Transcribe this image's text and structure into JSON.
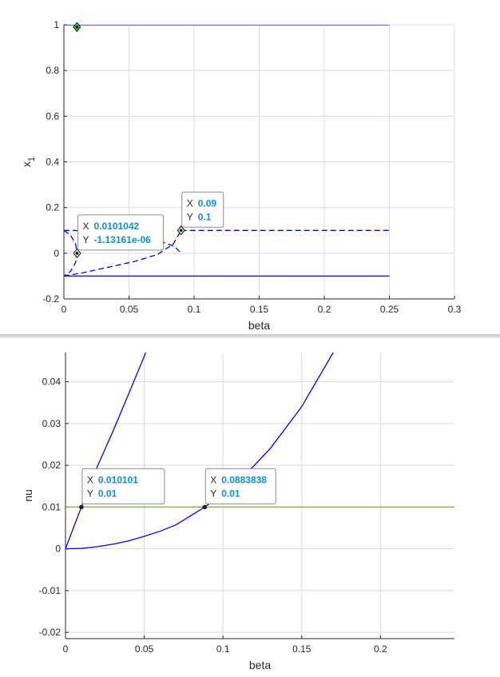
{
  "chart_data": [
    {
      "type": "line",
      "xlabel": "beta",
      "ylabel": "x",
      "ylabel_sub": "1",
      "xlim": [
        0,
        0.3
      ],
      "ylim": [
        -0.2,
        1
      ],
      "xticks": [
        0,
        0.05,
        0.1,
        0.15,
        0.2,
        0.25,
        0.3
      ],
      "xtick_labels": [
        "0",
        "0.05",
        "0.1",
        "0.15",
        "0.2",
        "0.25",
        "0.3"
      ],
      "yticks": [
        -0.2,
        0,
        0.2,
        0.4,
        0.6,
        0.8,
        1
      ],
      "ytick_labels": [
        "-0.2",
        "0",
        "0.2",
        "0.4",
        "0.6",
        "0.8",
        "1"
      ],
      "grid": true,
      "series": [
        {
          "style": "solid",
          "color": "#0000ff",
          "x": [
            0,
            0.25
          ],
          "y": [
            1,
            1
          ]
        },
        {
          "style": "solid",
          "color": "#0000ff",
          "x": [
            0,
            0.25
          ],
          "y": [
            -0.1,
            -0.1
          ]
        },
        {
          "style": "dashed",
          "color": "#0000ff",
          "x": [
            0.09,
            0.25
          ],
          "y": [
            0.1,
            0.1
          ]
        },
        {
          "style": "dashed",
          "color": "#0000ff",
          "x": [
            0,
            0.005,
            0.009,
            0.0101,
            0.009,
            0.005,
            0
          ],
          "y": [
            0.1,
            0.08,
            0.04,
            0,
            -0.04,
            -0.08,
            -0.1
          ]
        },
        {
          "style": "dashed",
          "color": "#0000ff",
          "x": [
            0,
            0.008,
            0.02,
            0.04,
            0.06,
            0.075,
            0.085,
            0.09
          ],
          "y": [
            0.1,
            0.1,
            0.095,
            0.085,
            0.07,
            0.05,
            0.03,
            0.0
          ]
        },
        {
          "style": "dashed",
          "color": "#0000ff",
          "x": [
            0,
            0.015,
            0.035,
            0.055,
            0.072,
            0.084,
            0.09
          ],
          "y": [
            -0.1,
            -0.085,
            -0.06,
            -0.035,
            -0.005,
            0.04,
            0.1
          ]
        }
      ],
      "markers": [
        {
          "x": 0.01,
          "y": 0.99,
          "shape": "diamond",
          "fill": "#33dd33"
        },
        {
          "x": 0.0101042,
          "y": 0,
          "shape": "diamond",
          "fill": "#c8f0c8"
        },
        {
          "x": 0.09,
          "y": 0.1,
          "shape": "diamond",
          "fill": "#c8f0c8"
        }
      ],
      "datatips": [
        {
          "x_label": "X",
          "x_value": "0.0101042",
          "y_label": "Y",
          "y_value": "-1.13161e-06",
          "x": 0.0101042,
          "y": 0
        },
        {
          "x_label": "X",
          "x_value": "0.09",
          "y_label": "Y",
          "y_value": "0.1",
          "x": 0.09,
          "y": 0.1
        }
      ]
    },
    {
      "type": "line",
      "xlabel": "beta",
      "ylabel": "nu",
      "xlim": [
        0,
        0.247
      ],
      "ylim": [
        -0.0215,
        0.047
      ],
      "xticks": [
        0,
        0.05,
        0.1,
        0.15,
        0.2
      ],
      "xtick_labels": [
        "0",
        "0.05",
        "0.1",
        "0.15",
        "0.2"
      ],
      "yticks": [
        -0.02,
        -0.01,
        0,
        0.01,
        0.02,
        0.03,
        0.04
      ],
      "ytick_labels": [
        "-0.02",
        "-0.01",
        "0",
        "0.01",
        "0.02",
        "0.03",
        "0.04"
      ],
      "grid": true,
      "series": [
        {
          "style": "solid",
          "color": "#77ac30",
          "x": [
            0,
            0.247
          ],
          "y": [
            0.01,
            0.01
          ]
        },
        {
          "style": "solid",
          "color": "#0000ff",
          "x": [
            0,
            0.005,
            0.010101,
            0.02,
            0.03,
            0.04,
            0.051
          ],
          "y": [
            0,
            0.005,
            0.01,
            0.0195,
            0.028,
            0.037,
            0.047
          ]
        },
        {
          "style": "solid",
          "color": "#0000ff",
          "x": [
            0,
            0.01,
            0.02,
            0.03,
            0.04,
            0.05,
            0.06,
            0.07,
            0.0883838,
            0.11,
            0.13,
            0.15,
            0.17
          ],
          "y": [
            0,
            0.0001,
            0.0005,
            0.0011,
            0.0019,
            0.003,
            0.0042,
            0.0057,
            0.01,
            0.016,
            0.024,
            0.034,
            0.047
          ]
        }
      ],
      "markers": [
        {
          "x": 0.010101,
          "y": 0.01,
          "shape": "dot",
          "fill": "#222222"
        },
        {
          "x": 0.0883838,
          "y": 0.01,
          "shape": "dot",
          "fill": "#222222"
        }
      ],
      "datatips": [
        {
          "x_label": "X",
          "x_value": "0.010101",
          "y_label": "Y",
          "y_value": "0.01",
          "x": 0.010101,
          "y": 0.01
        },
        {
          "x_label": "X",
          "x_value": "0.0883838",
          "y_label": "Y",
          "y_value": "0.01",
          "x": 0.0883838,
          "y": 0.01
        }
      ]
    }
  ]
}
